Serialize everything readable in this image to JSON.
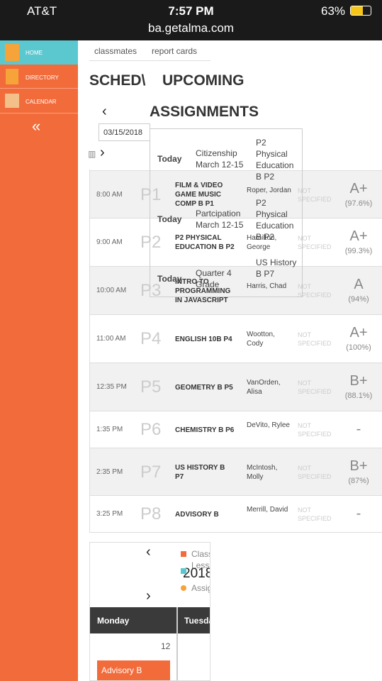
{
  "status": {
    "carrier": "AT&T",
    "time": "7:57 PM",
    "battery": "63%",
    "url": "ba.getalma.com"
  },
  "sidebar": {
    "items": [
      "HOME",
      "DIRECTORY",
      "CALENDAR"
    ],
    "collapse": "«"
  },
  "tabs": [
    "classmates",
    "report cards"
  ],
  "schedule": {
    "title": "SCHED\\",
    "rows": [
      {
        "time": "8:00 AM",
        "period": "P1",
        "course": "FILM & VIDEO GAME MUSIC COMP B P1",
        "teacher": "Roper, Jordan",
        "room": "NOT SPECIFIED",
        "grade": "A+",
        "percent": "(97.6%)"
      },
      {
        "time": "9:00 AM",
        "period": "P2",
        "course": "P2 PHYSICAL EDUCATION B P2",
        "teacher": "Hamilton, George",
        "room": "NOT SPECIFIED",
        "grade": "A+",
        "percent": "(99.3%)"
      },
      {
        "time": "10:00 AM",
        "period": "P3",
        "course": "INTRO TO PROGRAMMING IN JAVASCRIPT",
        "teacher": "Harris, Chad",
        "room": "NOT SPECIFIED",
        "grade": "A",
        "percent": "(94%)"
      },
      {
        "time": "11:00 AM",
        "period": "P4",
        "course": "ENGLISH 10B P4",
        "teacher": "Wootton, Cody",
        "room": "NOT SPECIFIED",
        "grade": "A+",
        "percent": "(100%)"
      },
      {
        "time": "12:35 PM",
        "period": "P5",
        "course": "GEOMETRY B P5",
        "teacher": "VanOrden, Alisa",
        "room": "NOT SPECIFIED",
        "grade": "B+",
        "percent": "(88.1%)"
      },
      {
        "time": "1:35 PM",
        "period": "P6",
        "course": "CHEMISTRY B P6",
        "teacher": "DeVito, Rylee",
        "room": "NOT SPECIFIED",
        "grade": "-"
      },
      {
        "time": "2:35 PM",
        "period": "P7",
        "course": "US HISTORY B P7",
        "teacher": "McIntosh, Molly",
        "room": "NOT SPECIFIED",
        "grade": "B+",
        "percent": "(87%)"
      },
      {
        "time": "3:25 PM",
        "period": "P8",
        "course": "ADVISORY B",
        "teacher": "Merrill, David",
        "room": "NOT SPECIFIED",
        "grade": "-"
      }
    ]
  },
  "upcoming": {
    "title1": "UPCOMING",
    "title2": "ASSIGNMENTS",
    "prev": "‹",
    "next": "›",
    "date": "03/15/2018",
    "items": [
      {
        "day": "Today",
        "title": "Citizenship March 12-15",
        "course": "P2 Physical Education B P2"
      },
      {
        "day": "Today",
        "title": "Partcipation March 12-15",
        "course": "P2 Physical Education B P2"
      },
      {
        "day": "Today",
        "title": "Quarter 4 Grade",
        "course": "US History B P7"
      }
    ]
  },
  "calendar": {
    "prev": "‹",
    "next": "›",
    "year": "2018",
    "legend": [
      "Class",
      "Lesso",
      "Assig"
    ],
    "days": [
      "Monday",
      "Tuesda"
    ],
    "date": "12",
    "event": "Advisory B"
  }
}
